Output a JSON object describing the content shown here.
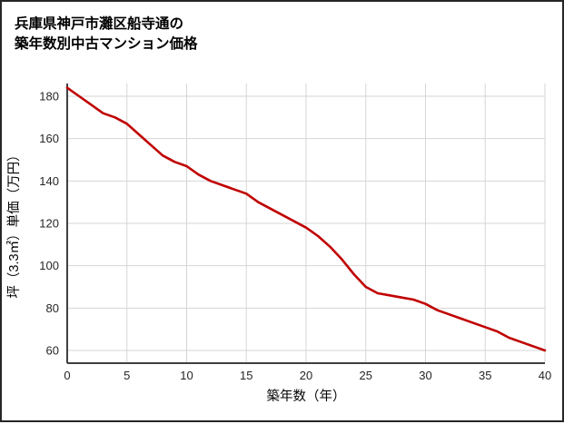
{
  "title": {
    "line1": "兵庫県神戸市灘区船寺通の",
    "line2": "築年数別中古マンション価格"
  },
  "chart_data": {
    "type": "line",
    "title": "兵庫県神戸市灘区船寺通の築年数別中古マンション価格",
    "xlabel": "築年数（年）",
    "ylabel": "坪（3.3㎡）単価（万円）",
    "x": [
      0,
      1,
      2,
      3,
      4,
      5,
      6,
      7,
      8,
      9,
      10,
      11,
      12,
      13,
      14,
      15,
      16,
      17,
      18,
      19,
      20,
      21,
      22,
      23,
      24,
      25,
      26,
      27,
      28,
      29,
      30,
      31,
      32,
      33,
      34,
      35,
      36,
      37,
      38,
      39,
      40
    ],
    "values": [
      184,
      180,
      176,
      172,
      170,
      167,
      162,
      157,
      152,
      149,
      147,
      143,
      140,
      138,
      136,
      134,
      130,
      127,
      124,
      121,
      118,
      114,
      109,
      103,
      96,
      90,
      87,
      86,
      85,
      84,
      82,
      79,
      77,
      75,
      73,
      71,
      69,
      66,
      64,
      62,
      60
    ],
    "xlim": [
      0,
      40
    ],
    "ylim": [
      54,
      186
    ],
    "x_ticks": [
      0,
      5,
      10,
      15,
      20,
      25,
      30,
      35,
      40
    ],
    "y_ticks": [
      60,
      80,
      100,
      120,
      140,
      160,
      180
    ],
    "grid": true,
    "legend": "none",
    "line_color": "#c00000",
    "grid_color": "#d6d6d6",
    "axis_color": "#404040"
  }
}
